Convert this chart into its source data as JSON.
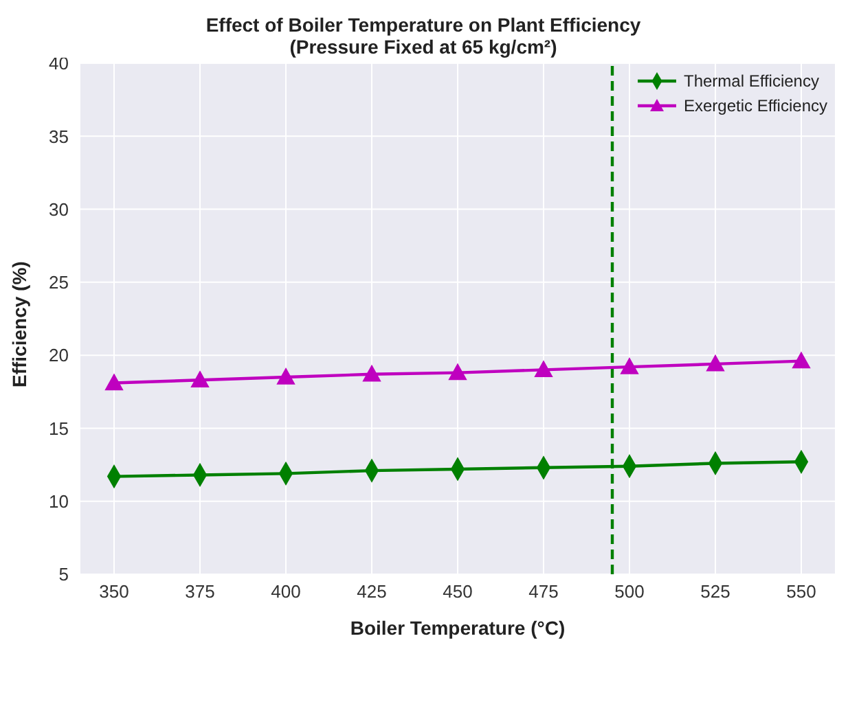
{
  "chart_data": {
    "type": "line",
    "title": "Effect of Boiler Temperature on Plant Efficiency",
    "subtitle": "(Pressure Fixed at 65 kg/cm²)",
    "xlabel": "Boiler Temperature (°C)",
    "ylabel": "Efficiency (%)",
    "x": [
      350,
      375,
      400,
      425,
      450,
      475,
      500,
      525,
      550
    ],
    "series": [
      {
        "name": "Thermal Efficiency",
        "color": "#008000",
        "marker": "diamond",
        "values": [
          11.7,
          11.8,
          11.9,
          12.1,
          12.2,
          12.3,
          12.4,
          12.6,
          12.7
        ]
      },
      {
        "name": "Exergetic Efficiency",
        "color": "#bf00bf",
        "marker": "triangle",
        "values": [
          18.1,
          18.3,
          18.5,
          18.7,
          18.8,
          19.0,
          19.2,
          19.4,
          19.6
        ]
      }
    ],
    "xlim": [
      340,
      560
    ],
    "xticks": [
      350,
      375,
      400,
      425,
      450,
      475,
      500,
      525,
      550
    ],
    "ylim": [
      5,
      40
    ],
    "yticks": [
      5,
      10,
      15,
      20,
      25,
      30,
      35,
      40
    ],
    "ref_lines": [
      {
        "axis": "x",
        "value": 495,
        "color": "#008000",
        "line_style": "dashed"
      }
    ],
    "grid": true,
    "legend": "top right",
    "line_style": "solid"
  }
}
